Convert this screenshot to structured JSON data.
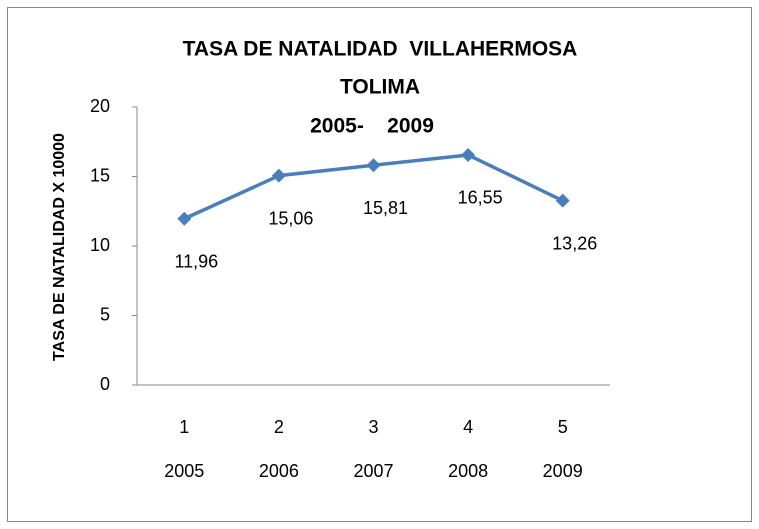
{
  "chart_data": {
    "type": "line",
    "title": [
      "TASA DE NATALIDAD  VILLAHERMOSA",
      "TOLIMA",
      "2005-    2009"
    ],
    "y_label": "TASA DE NATALIDAD X 10000",
    "categories": [
      "1",
      "2",
      "3",
      "4",
      "5"
    ],
    "category_years": [
      "2005",
      "2006",
      "2007",
      "2008",
      "2009"
    ],
    "series": [
      {
        "name": null,
        "color": "#4a7ebb",
        "values": [
          11.96,
          15.06,
          15.81,
          16.55,
          13.26
        ],
        "value_labels": [
          "11,96",
          "15,06",
          "15,81",
          "16,55",
          "13,26"
        ]
      }
    ],
    "ylim": [
      0,
      20
    ],
    "yticks": [
      0,
      5,
      10,
      15,
      20
    ],
    "grid": false
  }
}
